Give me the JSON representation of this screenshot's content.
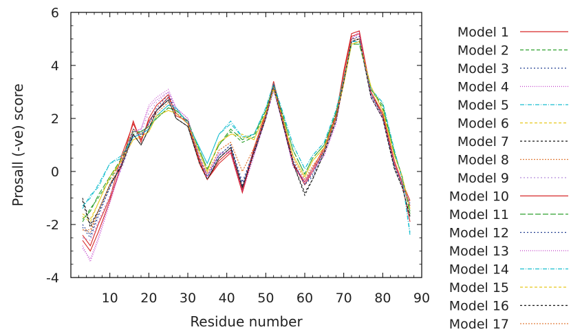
{
  "chart_data": {
    "type": "line",
    "title": "",
    "xlabel": "Residue number",
    "ylabel": "Prosall (-ve) score",
    "xlim": [
      0,
      90
    ],
    "ylim": [
      -4,
      6
    ],
    "xticks": [
      "10",
      "20",
      "30",
      "40",
      "50",
      "60",
      "70",
      "80",
      "90"
    ],
    "yticks": [
      "-4",
      "-2",
      "0",
      "2",
      "4",
      "6"
    ],
    "grid": false,
    "legend_position": "right",
    "x": [
      3,
      5,
      7,
      10,
      13,
      16,
      18,
      20,
      22,
      25,
      27,
      30,
      33,
      35,
      38,
      41,
      44,
      47,
      50,
      52,
      54,
      57,
      60,
      62,
      65,
      68,
      70,
      72,
      74,
      77,
      80,
      83,
      85,
      87
    ],
    "series": [
      {
        "name": "Model 1",
        "color": "#d62728",
        "dash": "",
        "values": [
          -2.4,
          -2.8,
          -2.0,
          -1.0,
          0.6,
          1.8,
          1.2,
          1.9,
          2.3,
          2.8,
          2.2,
          1.8,
          0.4,
          -0.3,
          0.4,
          0.8,
          -0.7,
          0.9,
          2.2,
          3.3,
          2.1,
          0.3,
          -0.4,
          0.1,
          0.9,
          2.1,
          3.7,
          5.1,
          5.2,
          3.0,
          2.2,
          0.4,
          -0.4,
          -1.1
        ]
      },
      {
        "name": "Model 2",
        "color": "#2ca02c",
        "dash": "5,3",
        "values": [
          -1.9,
          -1.4,
          -1.0,
          -0.3,
          0.4,
          1.4,
          1.5,
          1.7,
          2.0,
          2.4,
          2.3,
          1.9,
          0.8,
          0.1,
          1.0,
          1.5,
          1.1,
          1.3,
          2.3,
          3.2,
          2.3,
          0.8,
          -0.1,
          0.5,
          1.0,
          2.2,
          3.5,
          4.8,
          4.9,
          3.1,
          2.4,
          0.7,
          -0.2,
          -1.5
        ]
      },
      {
        "name": "Model 3",
        "color": "#1f3b8f",
        "dash": "2,3",
        "values": [
          -2.1,
          -2.5,
          -1.7,
          -0.6,
          0.3,
          1.6,
          1.4,
          1.8,
          2.4,
          2.9,
          2.3,
          1.9,
          0.5,
          -0.2,
          0.6,
          1.0,
          -0.5,
          0.8,
          2.1,
          3.3,
          2.2,
          0.4,
          -0.5,
          -0.2,
          0.8,
          2.0,
          3.4,
          5.0,
          5.1,
          2.9,
          2.1,
          0.2,
          -0.5,
          -1.2
        ]
      },
      {
        "name": "Model 4",
        "color": "#c03ec8",
        "dash": "1,2",
        "values": [
          -2.8,
          -3.4,
          -2.6,
          -1.2,
          0.2,
          1.5,
          1.6,
          2.5,
          2.8,
          3.1,
          2.4,
          2.0,
          0.5,
          -0.2,
          0.7,
          0.7,
          -0.8,
          0.6,
          2.0,
          3.1,
          2.0,
          0.2,
          -0.4,
          0.0,
          0.6,
          1.8,
          3.4,
          5.0,
          5.3,
          2.8,
          2.0,
          0.3,
          -0.5,
          -1.3
        ]
      },
      {
        "name": "Model 5",
        "color": "#17becf",
        "dash": "6,2,1,2",
        "values": [
          -1.4,
          -0.9,
          -0.6,
          0.3,
          0.5,
          1.3,
          1.4,
          1.6,
          2.1,
          2.5,
          2.4,
          1.8,
          0.9,
          0.3,
          1.4,
          1.9,
          1.3,
          1.4,
          2.4,
          3.3,
          2.4,
          1.0,
          0.1,
          0.6,
          1.1,
          2.3,
          3.5,
          4.9,
          4.9,
          3.1,
          2.6,
          0.8,
          -0.3,
          -2.4
        ]
      },
      {
        "name": "Model 6",
        "color": "#e6c619",
        "dash": "4,3",
        "values": [
          -1.6,
          -1.8,
          -1.2,
          -0.2,
          0.4,
          1.2,
          1.3,
          1.5,
          2.1,
          2.3,
          2.2,
          1.8,
          0.7,
          0.0,
          1.1,
          1.4,
          1.4,
          1.2,
          2.2,
          3.1,
          2.2,
          0.6,
          -0.2,
          0.4,
          0.9,
          2.0,
          3.3,
          4.8,
          4.9,
          3.2,
          2.3,
          0.6,
          -0.2,
          -1.4
        ]
      },
      {
        "name": "Model 7",
        "color": "#111111",
        "dash": "3,3",
        "values": [
          -1.0,
          -2.0,
          -1.5,
          -0.5,
          0.2,
          1.4,
          1.0,
          1.6,
          2.3,
          2.7,
          2.0,
          1.7,
          0.3,
          -0.3,
          0.5,
          0.9,
          -0.6,
          0.7,
          2.0,
          3.2,
          2.0,
          0.3,
          -0.8,
          -0.3,
          0.7,
          1.9,
          3.4,
          4.9,
          5.0,
          2.8,
          2.0,
          0.1,
          -0.6,
          -1.7
        ]
      },
      {
        "name": "Model 8",
        "color": "#e07b39",
        "dash": "2,2",
        "values": [
          -2.2,
          -2.3,
          -1.5,
          -0.5,
          0.5,
          1.6,
          1.4,
          1.7,
          2.2,
          2.6,
          2.2,
          1.8,
          0.5,
          -0.1,
          0.8,
          1.1,
          0.0,
          0.9,
          2.1,
          3.2,
          2.1,
          0.5,
          -0.3,
          0.2,
          0.8,
          2.0,
          3.5,
          5.0,
          5.0,
          3.0,
          2.2,
          0.4,
          -0.4,
          -1.3
        ]
      },
      {
        "name": "Model 9",
        "color": "#b58bd9",
        "dash": "2,3",
        "values": [
          -2.5,
          -2.6,
          -1.9,
          -0.9,
          0.1,
          1.3,
          1.5,
          2.2,
          2.6,
          3.0,
          2.3,
          1.9,
          0.6,
          -0.1,
          0.6,
          0.8,
          -0.4,
          0.7,
          2.0,
          3.0,
          2.0,
          0.2,
          -0.3,
          0.1,
          0.7,
          1.9,
          3.4,
          4.9,
          5.1,
          2.9,
          2.1,
          0.3,
          -0.4,
          -1.2
        ]
      },
      {
        "name": "Model 10",
        "color": "#d62728",
        "dash": "",
        "values": [
          -2.6,
          -3.0,
          -2.3,
          -1.1,
          0.3,
          1.9,
          1.1,
          2.0,
          2.5,
          2.9,
          2.1,
          1.9,
          0.3,
          -0.3,
          0.3,
          0.7,
          -0.8,
          0.8,
          2.1,
          3.4,
          2.2,
          0.3,
          -0.5,
          0.0,
          0.8,
          2.1,
          3.8,
          5.2,
          5.3,
          3.0,
          2.1,
          0.3,
          -0.5,
          -1.9
        ]
      },
      {
        "name": "Model 11",
        "color": "#2ca02c",
        "dash": "8,3",
        "values": [
          -1.8,
          -1.5,
          -0.9,
          -0.2,
          0.5,
          1.5,
          1.5,
          1.7,
          2.0,
          2.4,
          2.3,
          1.9,
          0.8,
          0.1,
          1.0,
          1.6,
          1.2,
          1.4,
          2.3,
          3.2,
          2.3,
          0.8,
          -0.1,
          0.5,
          1.0,
          2.2,
          3.5,
          4.8,
          4.8,
          3.1,
          2.5,
          0.7,
          -0.2,
          -1.6
        ]
      },
      {
        "name": "Model 12",
        "color": "#1f3b8f",
        "dash": "2,3",
        "values": [
          -2.0,
          -2.4,
          -1.6,
          -0.6,
          0.3,
          1.6,
          1.3,
          1.8,
          2.3,
          2.8,
          2.2,
          1.9,
          0.5,
          -0.2,
          0.6,
          1.0,
          -0.4,
          0.8,
          2.1,
          3.3,
          2.2,
          0.4,
          -0.5,
          -0.1,
          0.8,
          2.0,
          3.4,
          5.0,
          5.0,
          2.9,
          2.1,
          0.2,
          -0.5,
          -1.3
        ]
      },
      {
        "name": "Model 13",
        "color": "#c03ec8",
        "dash": "1,2",
        "values": [
          -2.9,
          -3.3,
          -2.5,
          -1.1,
          0.2,
          1.5,
          1.6,
          2.4,
          2.7,
          3.0,
          2.4,
          2.0,
          0.5,
          -0.2,
          0.7,
          0.7,
          -0.7,
          0.6,
          2.0,
          3.1,
          2.0,
          0.2,
          -0.4,
          0.0,
          0.6,
          1.8,
          3.4,
          5.0,
          5.2,
          2.8,
          2.0,
          0.3,
          -0.5,
          -1.3
        ]
      },
      {
        "name": "Model 14",
        "color": "#17becf",
        "dash": "6,2,1,2",
        "values": [
          -1.3,
          -1.0,
          -0.5,
          0.3,
          0.6,
          1.3,
          1.4,
          1.6,
          2.1,
          2.5,
          2.4,
          1.8,
          0.9,
          0.3,
          1.4,
          1.8,
          1.3,
          1.4,
          2.4,
          3.3,
          2.4,
          1.0,
          0.1,
          0.6,
          1.1,
          2.3,
          3.5,
          4.9,
          4.9,
          3.1,
          2.6,
          0.8,
          -0.3,
          -2.3
        ]
      },
      {
        "name": "Model 15",
        "color": "#e6c619",
        "dash": "4,3",
        "values": [
          -1.7,
          -1.9,
          -1.2,
          -0.2,
          0.4,
          1.2,
          1.3,
          1.5,
          2.1,
          2.3,
          2.2,
          1.8,
          0.7,
          0.0,
          1.1,
          1.4,
          1.3,
          1.2,
          2.2,
          3.1,
          2.2,
          0.6,
          -0.2,
          0.4,
          0.9,
          2.0,
          3.3,
          4.8,
          4.9,
          3.2,
          2.3,
          0.6,
          -0.2,
          -1.4
        ]
      },
      {
        "name": "Model 16",
        "color": "#111111",
        "dash": "3,3",
        "values": [
          -1.1,
          -2.1,
          -1.5,
          -0.5,
          0.2,
          1.4,
          1.0,
          1.6,
          2.3,
          2.7,
          2.0,
          1.7,
          0.3,
          -0.3,
          0.5,
          0.9,
          -0.6,
          0.7,
          2.0,
          3.2,
          2.0,
          0.3,
          -0.9,
          -0.3,
          0.7,
          1.9,
          3.4,
          4.9,
          5.0,
          2.8,
          2.0,
          0.1,
          -0.6,
          -1.7
        ]
      },
      {
        "name": "Model 17",
        "color": "#e07b39",
        "dash": "2,2",
        "values": [
          -2.2,
          -2.2,
          -1.5,
          -0.5,
          0.5,
          1.6,
          1.4,
          1.7,
          2.2,
          2.6,
          2.2,
          1.8,
          0.5,
          -0.1,
          0.8,
          1.1,
          0.0,
          0.9,
          2.1,
          3.2,
          2.1,
          0.5,
          -0.3,
          0.2,
          0.8,
          2.0,
          3.5,
          5.0,
          5.0,
          3.0,
          2.2,
          0.4,
          -0.4,
          -1.3
        ]
      }
    ]
  }
}
